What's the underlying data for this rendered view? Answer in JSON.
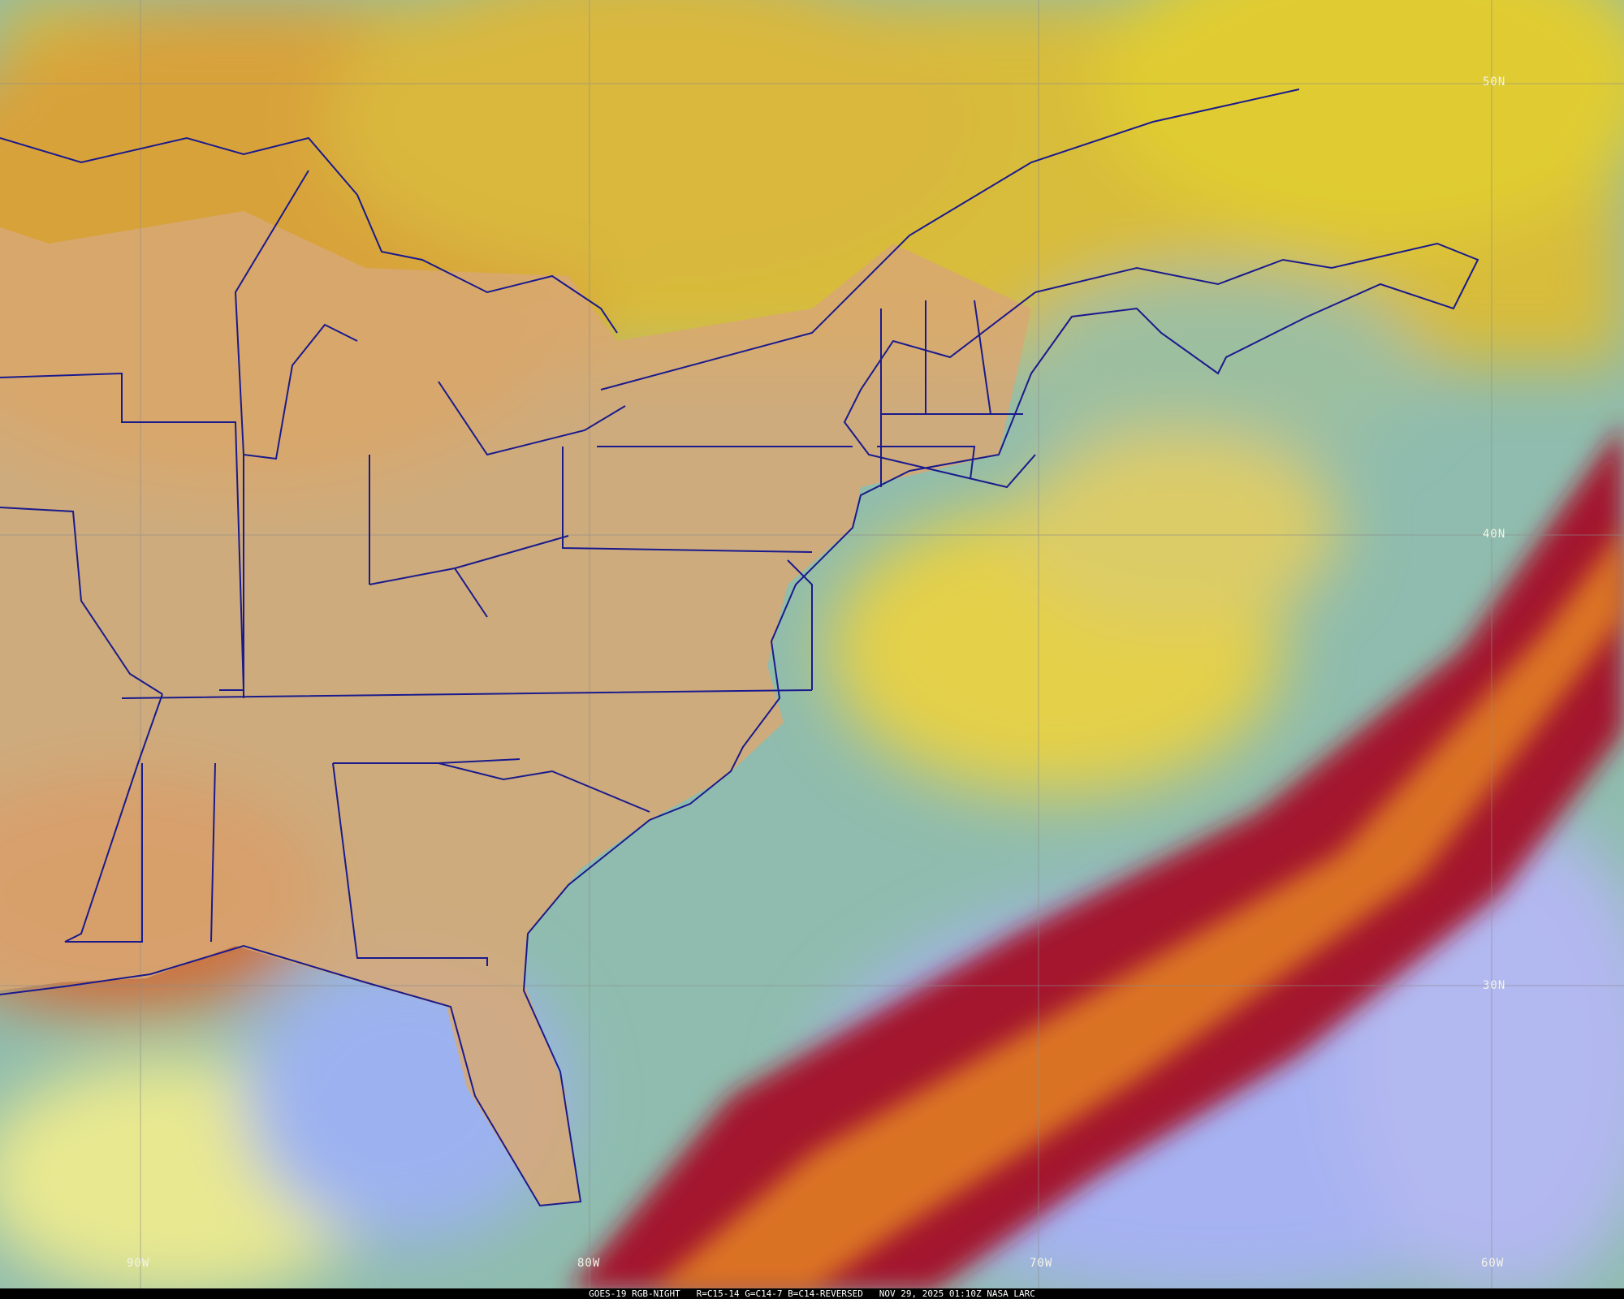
{
  "image": {
    "caption": {
      "satellite": "GOES-19 RGB-NIGHT",
      "channels": "R=C15-14 G=C14-7 B=C14-REVERSED",
      "timestamp": "NOV 29, 2025 01:10Z",
      "credit": "NASA LARC"
    },
    "latitude_labels": [
      "50N",
      "40N",
      "30N"
    ],
    "longitude_labels": [
      "90W",
      "80W",
      "70W",
      "60W"
    ],
    "colors": {
      "boundaries": "#1a1a8c",
      "gridlines": "#8c8c8c",
      "land": "#d8a874",
      "ocean": "#8fbcae",
      "high_cloud": "#a3182e",
      "clear_ocean": "#a6b2f2"
    }
  }
}
